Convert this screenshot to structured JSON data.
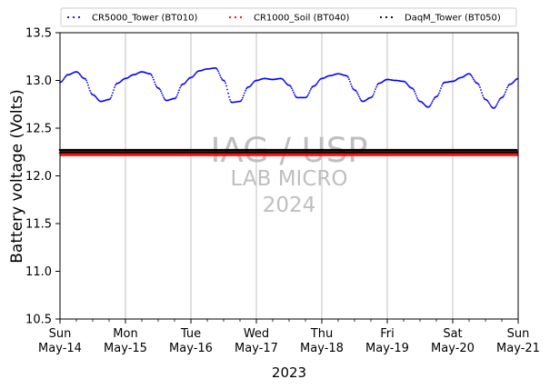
{
  "chart_data": {
    "type": "scatter",
    "xlabel": "2023",
    "ylabel": "Battery voltage (Volts)",
    "ylim": [
      10.5,
      13.5
    ],
    "xlim": [
      "2023-05-14",
      "2023-05-21"
    ],
    "y_ticks": [
      "10.5",
      "11.0",
      "11.5",
      "12.0",
      "12.5",
      "13.0",
      "13.5"
    ],
    "x_ticks": [
      {
        "day": "Sun",
        "date": "May-14"
      },
      {
        "day": "Mon",
        "date": "May-15"
      },
      {
        "day": "Tue",
        "date": "May-16"
      },
      {
        "day": "Wed",
        "date": "May-17"
      },
      {
        "day": "Thu",
        "date": "May-18"
      },
      {
        "day": "Fri",
        "date": "May-19"
      },
      {
        "day": "Sat",
        "date": "May-20"
      },
      {
        "day": "Sun",
        "date": "May-21"
      }
    ],
    "grid": "vertical",
    "legend_position": "top",
    "watermark": [
      "IAG / USP",
      "LAB MICRO",
      "2024"
    ],
    "series": [
      {
        "name": "CR5000_Tower (BT010)",
        "color": "#0000ff",
        "x": [
          "2023-05-14 00:00",
          "2023-05-14 03:00",
          "2023-05-14 06:00",
          "2023-05-14 09:00",
          "2023-05-14 12:00",
          "2023-05-14 15:00",
          "2023-05-14 18:00",
          "2023-05-14 21:00",
          "2023-05-15 00:00",
          "2023-05-15 03:00",
          "2023-05-15 06:00",
          "2023-05-15 09:00",
          "2023-05-15 12:00",
          "2023-05-15 15:00",
          "2023-05-15 18:00",
          "2023-05-15 21:00",
          "2023-05-16 00:00",
          "2023-05-16 03:00",
          "2023-05-16 06:00",
          "2023-05-16 09:00",
          "2023-05-16 12:00",
          "2023-05-16 15:00",
          "2023-05-16 18:00",
          "2023-05-16 21:00",
          "2023-05-17 00:00",
          "2023-05-17 03:00",
          "2023-05-17 06:00",
          "2023-05-17 09:00",
          "2023-05-17 12:00",
          "2023-05-17 15:00",
          "2023-05-17 18:00",
          "2023-05-17 21:00",
          "2023-05-18 00:00",
          "2023-05-18 03:00",
          "2023-05-18 06:00",
          "2023-05-18 09:00",
          "2023-05-18 12:00",
          "2023-05-18 15:00",
          "2023-05-18 18:00",
          "2023-05-18 21:00",
          "2023-05-19 00:00",
          "2023-05-19 03:00",
          "2023-05-19 06:00",
          "2023-05-19 09:00",
          "2023-05-19 12:00",
          "2023-05-19 15:00",
          "2023-05-19 18:00",
          "2023-05-19 21:00",
          "2023-05-20 00:00",
          "2023-05-20 03:00",
          "2023-05-20 06:00",
          "2023-05-20 09:00",
          "2023-05-20 12:00",
          "2023-05-20 15:00",
          "2023-05-20 18:00",
          "2023-05-20 21:00",
          "2023-05-21 00:00"
        ],
        "y": [
          12.98,
          13.06,
          13.09,
          13.02,
          12.85,
          12.78,
          12.8,
          12.97,
          13.02,
          13.06,
          13.09,
          13.07,
          12.92,
          12.79,
          12.81,
          12.96,
          13.03,
          13.1,
          13.12,
          13.13,
          13.0,
          12.77,
          12.78,
          12.93,
          13.0,
          13.02,
          13.01,
          13.02,
          12.95,
          12.82,
          12.82,
          12.94,
          13.02,
          13.05,
          13.07,
          13.05,
          12.9,
          12.78,
          12.82,
          12.97,
          13.01,
          13.0,
          12.99,
          12.92,
          12.78,
          12.72,
          12.83,
          12.98,
          12.99,
          13.03,
          13.07,
          12.97,
          12.8,
          12.71,
          12.82,
          12.96,
          13.02
        ]
      },
      {
        "name": "CR1000_Soil (BT040)",
        "color": "#ff0000",
        "x": [
          "2023-05-14 00:00",
          "2023-05-21 00:00"
        ],
        "y": [
          12.23,
          12.23
        ]
      },
      {
        "name": "DaqM_Tower (BT050)",
        "color": "#000000",
        "x": [
          "2023-05-14 00:00",
          "2023-05-21 00:00"
        ],
        "y": [
          12.26,
          12.26
        ]
      }
    ]
  }
}
